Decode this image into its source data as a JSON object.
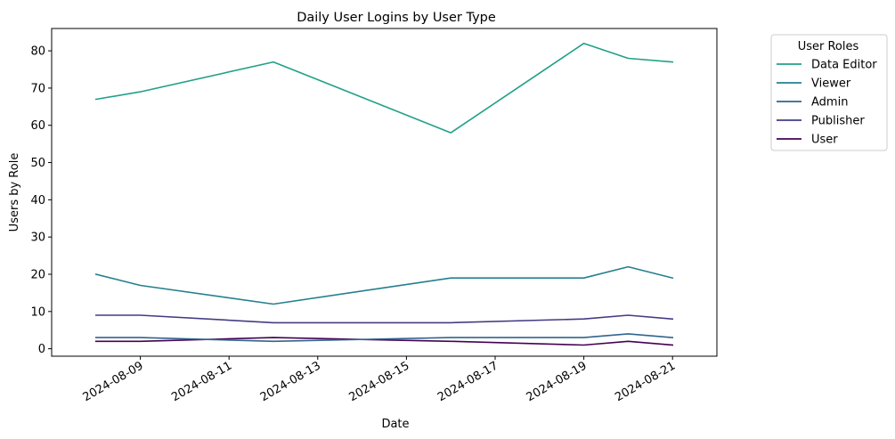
{
  "chart_data": {
    "type": "line",
    "title": "Daily User Logins by User Type",
    "xlabel": "Date",
    "ylabel": "Users by Role",
    "x": [
      "2024-08-08",
      "2024-08-09",
      "2024-08-12",
      "2024-08-16",
      "2024-08-19",
      "2024-08-20",
      "2024-08-21"
    ],
    "xlim": [
      "2024-08-07",
      "2024-08-22"
    ],
    "xticks": [
      "2024-08-09",
      "2024-08-11",
      "2024-08-13",
      "2024-08-15",
      "2024-08-17",
      "2024-08-19",
      "2024-08-21"
    ],
    "ylim": [
      -2,
      86
    ],
    "yticks": [
      0,
      10,
      20,
      30,
      40,
      50,
      60,
      70,
      80
    ],
    "grid": false,
    "legend": {
      "title": "User Roles",
      "placement": "outside-top-right"
    },
    "series": [
      {
        "name": "Data Editor",
        "color": "#21a087",
        "values": [
          67,
          69,
          77,
          58,
          82,
          78,
          77
        ]
      },
      {
        "name": "Viewer",
        "color": "#23808e",
        "values": [
          20,
          17,
          12,
          19,
          19,
          22,
          19
        ]
      },
      {
        "name": "Admin",
        "color": "#31648d",
        "values": [
          3,
          3,
          2,
          3,
          3,
          4,
          3
        ]
      },
      {
        "name": "Publisher",
        "color": "#433c84",
        "values": [
          9,
          9,
          7,
          7,
          8,
          9,
          8
        ]
      },
      {
        "name": "User",
        "color": "#440154",
        "values": [
          2,
          2,
          3,
          2,
          1,
          2,
          1
        ]
      }
    ]
  }
}
